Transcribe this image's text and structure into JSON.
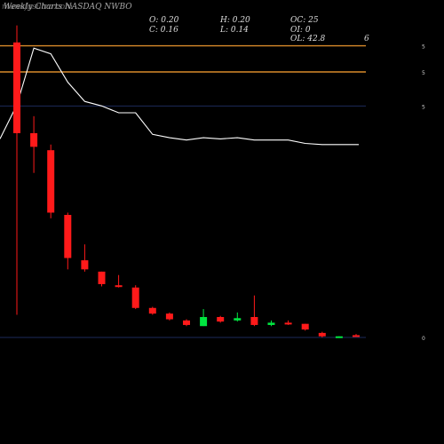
{
  "header": {
    "site": "munafasutra.com",
    "title": "Weekly Charts NASDAQ NWBO",
    "o": "O: 0.20",
    "h": "H: 0.20",
    "oc": "OC: 25",
    "c": "C: 0.16",
    "l": "L: 0.14",
    "oi": "OI: 0",
    "ol": "OL: 42.8",
    "marker": "6"
  },
  "chart_data": {
    "type": "candlestick",
    "y_tick_labels": [
      "5",
      "5",
      "5",
      "0"
    ],
    "candles": [
      {
        "o": 2.6,
        "h": 2.75,
        "l": 0.2,
        "c": 1.8,
        "color": "red"
      },
      {
        "o": 1.8,
        "h": 1.95,
        "l": 1.45,
        "c": 1.68,
        "color": "red"
      },
      {
        "o": 1.65,
        "h": 1.7,
        "l": 1.05,
        "c": 1.1,
        "color": "red"
      },
      {
        "o": 1.08,
        "h": 1.1,
        "l": 0.6,
        "c": 0.7,
        "color": "red"
      },
      {
        "o": 0.68,
        "h": 0.82,
        "l": 0.58,
        "c": 0.6,
        "color": "red"
      },
      {
        "o": 0.58,
        "h": 0.58,
        "l": 0.45,
        "c": 0.47,
        "color": "red"
      },
      {
        "o": 0.46,
        "h": 0.55,
        "l": 0.44,
        "c": 0.45,
        "color": "red"
      },
      {
        "o": 0.44,
        "h": 0.46,
        "l": 0.25,
        "c": 0.26,
        "color": "red"
      },
      {
        "o": 0.26,
        "h": 0.27,
        "l": 0.2,
        "c": 0.21,
        "color": "red"
      },
      {
        "o": 0.21,
        "h": 0.22,
        "l": 0.15,
        "c": 0.16,
        "color": "red"
      },
      {
        "o": 0.15,
        "h": 0.16,
        "l": 0.1,
        "c": 0.11,
        "color": "red"
      },
      {
        "o": 0.1,
        "h": 0.25,
        "l": 0.1,
        "c": 0.18,
        "color": "green"
      },
      {
        "o": 0.18,
        "h": 0.19,
        "l": 0.13,
        "c": 0.14,
        "color": "red"
      },
      {
        "o": 0.15,
        "h": 0.22,
        "l": 0.14,
        "c": 0.17,
        "color": "green"
      },
      {
        "o": 0.18,
        "h": 0.37,
        "l": 0.1,
        "c": 0.11,
        "color": "red"
      },
      {
        "o": 0.11,
        "h": 0.15,
        "l": 0.1,
        "c": 0.13,
        "color": "green"
      },
      {
        "o": 0.13,
        "h": 0.15,
        "l": 0.11,
        "c": 0.12,
        "color": "red"
      },
      {
        "o": 0.12,
        "h": 0.12,
        "l": 0.06,
        "c": 0.07,
        "color": "red"
      },
      {
        "o": 0.04,
        "h": 0.05,
        "l": 0.0,
        "c": 0.01,
        "color": "red"
      },
      {
        "o": 0.0,
        "h": 0.01,
        "l": 0.0,
        "c": 0.01,
        "color": "green"
      },
      {
        "o": 0.02,
        "h": 0.03,
        "l": 0.01,
        "c": 0.01,
        "color": "red"
      }
    ],
    "moving_average": [
      2.05,
      2.55,
      2.5,
      2.25,
      2.08,
      2.04,
      1.98,
      1.98,
      1.79,
      1.76,
      1.74,
      1.76,
      1.75,
      1.76,
      1.74,
      1.74,
      1.74,
      1.71,
      1.7,
      1.7,
      1.7
    ],
    "levels": [
      {
        "value": 2.57,
        "color": "#d98a2a"
      },
      {
        "value": 2.34,
        "color": "#d98a2a"
      },
      {
        "value": 2.04,
        "color": "#1c2a5a"
      },
      {
        "value": 0.0,
        "color": "#1c2a5a"
      }
    ],
    "colors": {
      "up": "#00e640",
      "down": "#ff1a1a",
      "ma": "#ffffff",
      "background": "#000000"
    }
  }
}
